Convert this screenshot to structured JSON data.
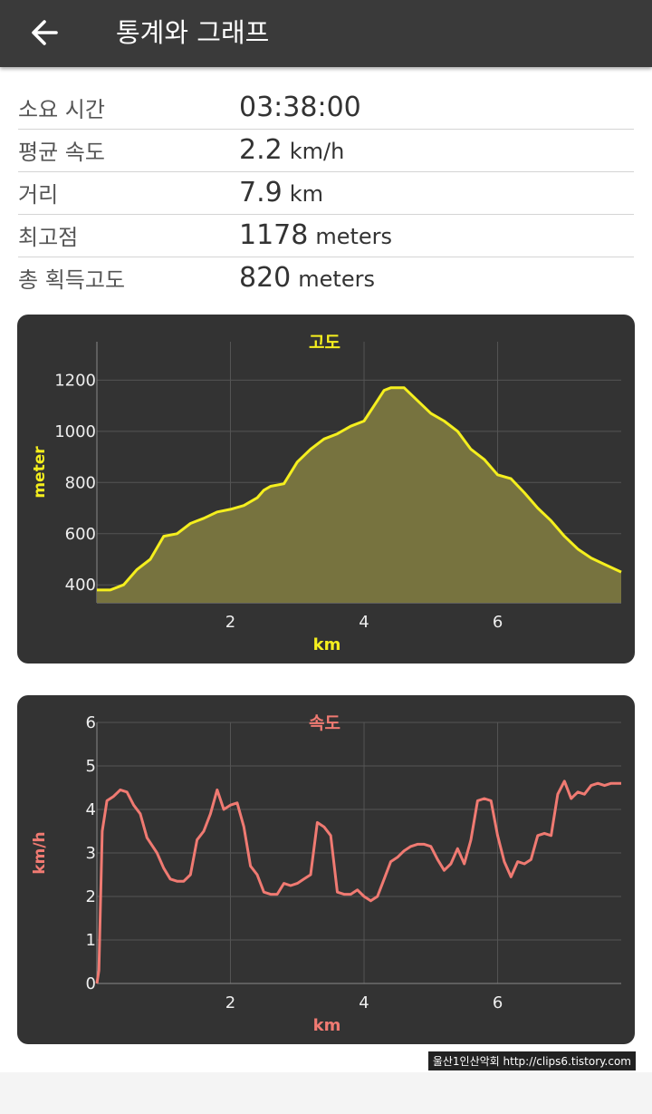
{
  "appbar": {
    "title": "통계와 그래프",
    "back_icon": "arrow-left-icon"
  },
  "stats": [
    {
      "label": "소요 시간",
      "value": "03:38:00",
      "unit": ""
    },
    {
      "label": "평균 속도",
      "value": "2.2",
      "unit": "km/h"
    },
    {
      "label": "거리",
      "value": "7.9",
      "unit": "km"
    },
    {
      "label": "최고점",
      "value": "1178",
      "unit": "meters"
    },
    {
      "label": "총 획득고도",
      "value": "820",
      "unit": "meters"
    }
  ],
  "colors": {
    "panel_bg": "#333333",
    "elevation_line": "#f5ef1e",
    "elevation_fill": "#77733f",
    "speed_line": "#f07a72",
    "grid": "#555555",
    "axis_text": "#eeeeee"
  },
  "chart_data": [
    {
      "type": "area",
      "title": "고도",
      "xlabel": "km",
      "ylabel": "meter",
      "xlim": [
        0,
        7.85
      ],
      "ylim": [
        330,
        1350
      ],
      "x_ticks": [
        2,
        4,
        6
      ],
      "y_ticks": [
        400,
        600,
        800,
        1000,
        1200
      ],
      "grid": true,
      "series": [
        {
          "x": [
            0,
            0.2,
            0.4,
            0.6,
            0.8,
            1.0,
            1.2,
            1.4,
            1.5,
            1.6,
            1.8,
            2.0,
            2.2,
            2.4,
            2.5,
            2.6,
            2.8,
            3.0,
            3.2,
            3.4,
            3.6,
            3.8,
            4.0,
            4.2,
            4.3,
            4.4,
            4.6,
            4.8,
            5.0,
            5.2,
            5.4,
            5.6,
            5.8,
            6.0,
            6.2,
            6.4,
            6.6,
            6.8,
            7.0,
            7.2,
            7.4,
            7.6,
            7.85
          ],
          "y": [
            380,
            380,
            400,
            460,
            500,
            590,
            600,
            640,
            650,
            660,
            685,
            695,
            710,
            740,
            770,
            785,
            795,
            880,
            930,
            970,
            990,
            1020,
            1040,
            1120,
            1160,
            1170,
            1170,
            1120,
            1070,
            1040,
            1000,
            930,
            890,
            830,
            815,
            760,
            700,
            650,
            590,
            540,
            505,
            480,
            450
          ]
        }
      ]
    },
    {
      "type": "line",
      "title": "속도",
      "xlabel": "km",
      "ylabel": "km/h",
      "xlim": [
        0,
        7.85
      ],
      "ylim": [
        0,
        6
      ],
      "x_ticks": [
        2,
        4,
        6
      ],
      "y_ticks": [
        0,
        1,
        2,
        3,
        4,
        5,
        6
      ],
      "grid": true,
      "series": [
        {
          "x": [
            0,
            0.03,
            0.08,
            0.15,
            0.25,
            0.35,
            0.45,
            0.55,
            0.65,
            0.75,
            0.9,
            1.0,
            1.1,
            1.2,
            1.3,
            1.4,
            1.5,
            1.6,
            1.7,
            1.8,
            1.9,
            2.0,
            2.1,
            2.2,
            2.3,
            2.4,
            2.5,
            2.6,
            2.7,
            2.8,
            2.9,
            3.0,
            3.1,
            3.2,
            3.3,
            3.4,
            3.5,
            3.6,
            3.7,
            3.8,
            3.9,
            4.0,
            4.1,
            4.2,
            4.3,
            4.4,
            4.5,
            4.6,
            4.7,
            4.8,
            4.9,
            5.0,
            5.1,
            5.2,
            5.3,
            5.4,
            5.5,
            5.6,
            5.7,
            5.8,
            5.9,
            6.0,
            6.1,
            6.2,
            6.3,
            6.4,
            6.5,
            6.6,
            6.7,
            6.8,
            6.9,
            7.0,
            7.1,
            7.2,
            7.3,
            7.4,
            7.5,
            7.6,
            7.7,
            7.85
          ],
          "y": [
            0,
            0.3,
            3.5,
            4.2,
            4.3,
            4.45,
            4.4,
            4.1,
            3.9,
            3.35,
            3.0,
            2.65,
            2.4,
            2.35,
            2.35,
            2.5,
            3.3,
            3.5,
            3.9,
            4.45,
            4.0,
            4.1,
            4.15,
            3.6,
            2.7,
            2.5,
            2.1,
            2.05,
            2.05,
            2.3,
            2.25,
            2.3,
            2.4,
            2.5,
            3.7,
            3.6,
            3.4,
            2.1,
            2.05,
            2.05,
            2.15,
            2.0,
            1.9,
            2.0,
            2.4,
            2.8,
            2.9,
            3.05,
            3.15,
            3.2,
            3.2,
            3.15,
            2.85,
            2.6,
            2.75,
            3.1,
            2.75,
            3.3,
            4.2,
            4.25,
            4.2,
            3.4,
            2.8,
            2.45,
            2.8,
            2.75,
            2.85,
            3.4,
            3.45,
            3.4,
            4.35,
            4.65,
            4.25,
            4.4,
            4.35,
            4.55,
            4.6,
            4.55,
            4.6,
            4.6
          ]
        }
      ]
    }
  ],
  "watermark": "울산1인산악회 http://clips6.tistory.com"
}
